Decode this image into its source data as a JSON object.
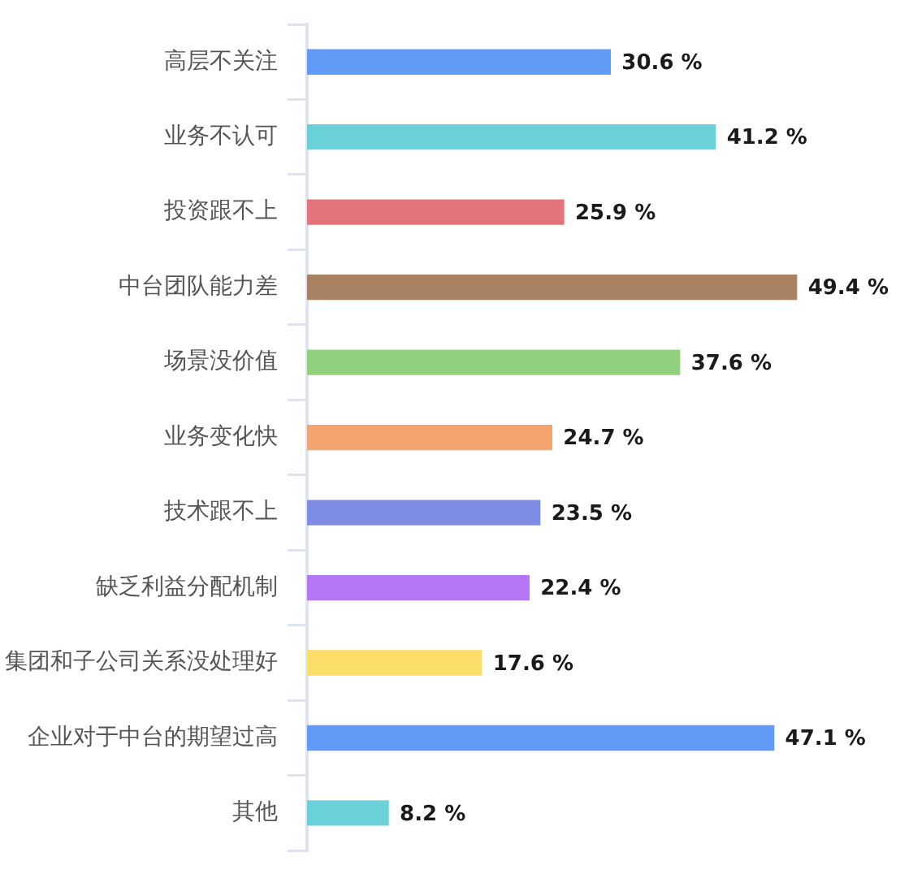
{
  "chart_data": {
    "type": "bar",
    "orientation": "horizontal",
    "categories": [
      "高层不关注",
      "业务不认可",
      "投资跟不上",
      "中台团队能力差",
      "场景没价值",
      "业务变化快",
      "技术跟不上",
      "缺乏利益分配机制",
      "集团和子公司关系没处理好",
      "企业对于中台的期望过高",
      "其他"
    ],
    "values": [
      30.6,
      41.2,
      25.9,
      49.4,
      37.6,
      24.7,
      23.5,
      22.4,
      17.6,
      47.1,
      8.2
    ],
    "colors": [
      "#619bf7",
      "#6bd1d9",
      "#e3737c",
      "#a88163",
      "#90d07e",
      "#f4a56f",
      "#7f8ce3",
      "#b677f6",
      "#fbdd6a",
      "#619bf7",
      "#6bd1d9"
    ],
    "value_labels": [
      "30.6 %",
      "41.2 %",
      "25.9 %",
      "49.4 %",
      "37.6 %",
      "24.7 %",
      "23.5 %",
      "22.4 %",
      "17.6 %",
      "47.1 %",
      "8.2 %"
    ],
    "tick_labels": "y",
    "grid": false
  }
}
